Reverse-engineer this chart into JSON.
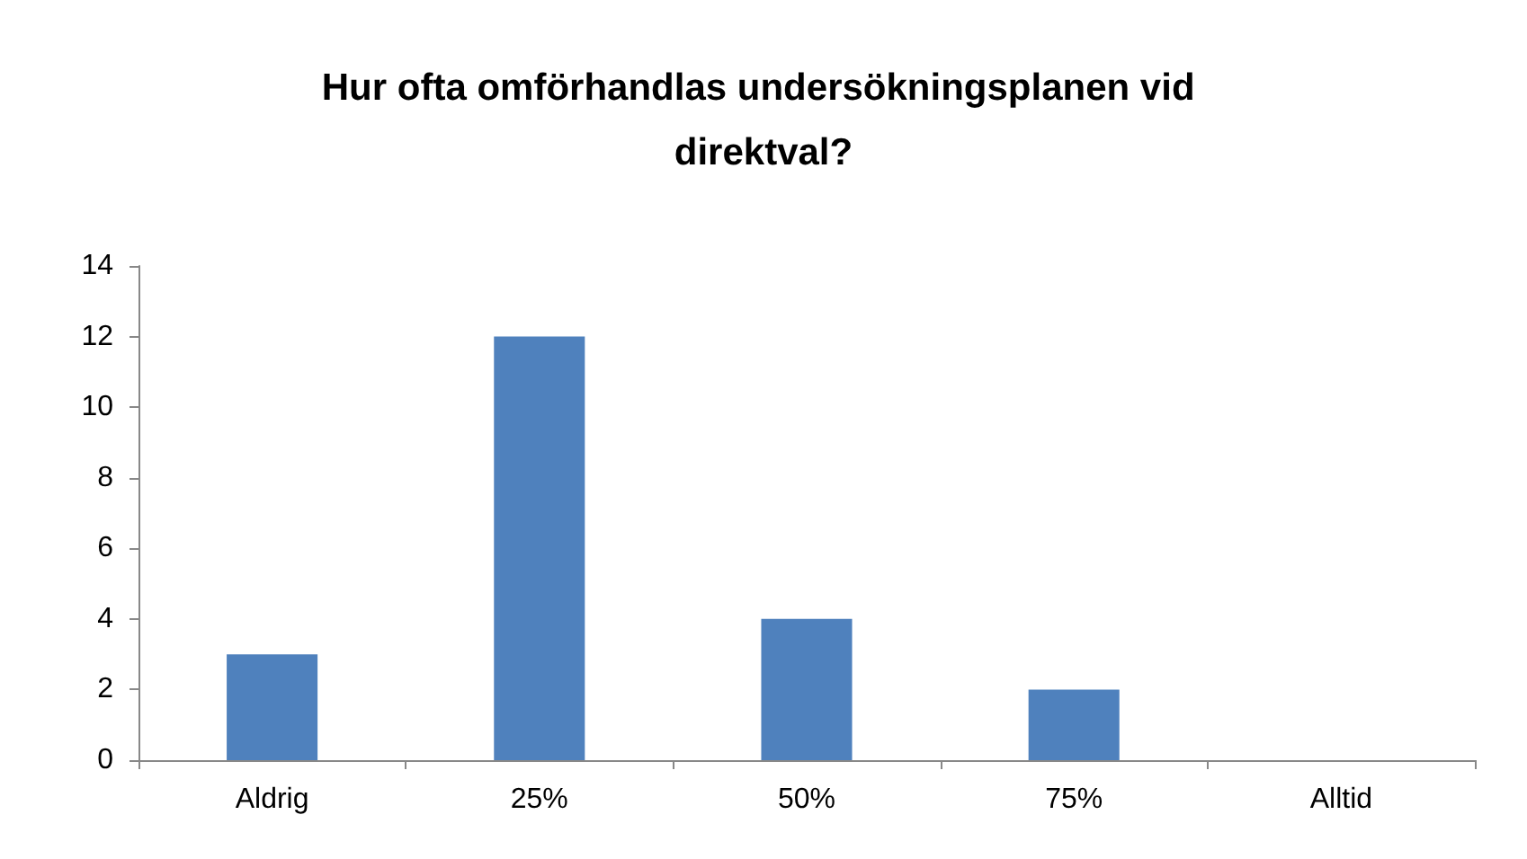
{
  "chart_data": {
    "type": "bar",
    "title": "Hur ofta omförhandlas undersökningsplanen vid direktval?",
    "categories": [
      "Aldrig",
      "25%",
      "50%",
      "75%",
      "Alltid"
    ],
    "values": [
      3,
      12,
      4,
      2,
      0
    ],
    "color": "#4f81bd",
    "ylim": [
      0,
      14
    ],
    "yticks": [
      0,
      2,
      4,
      6,
      8,
      10,
      12,
      14
    ],
    "grid": false
  }
}
